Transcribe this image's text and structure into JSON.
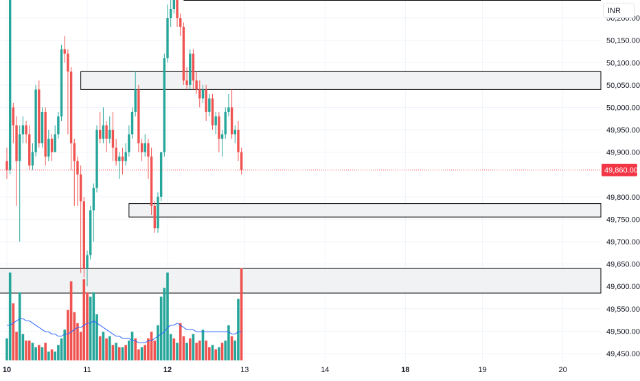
{
  "currency": "INR",
  "colors": {
    "up": "#26a69a",
    "down": "#ef5350",
    "ma_line": "#2962ff",
    "zone_fill": "#f0f2f4",
    "zone_border": "#000000",
    "grid": "#f0f3fa",
    "last_price": "#f23645"
  },
  "chart_data": {
    "type": "candlestick",
    "y_axis": {
      "range": [
        49430,
        50240
      ],
      "ticks": [
        50200,
        50150,
        50100,
        50050,
        50000,
        49950,
        49900,
        49800,
        49750,
        49700,
        49650,
        49600,
        49550,
        49500,
        49450
      ],
      "tick_labels": [
        "50,200.00",
        "50,150.00",
        "50,100.00",
        "50,050.00",
        "50,000.00",
        "49,950.00",
        "49,900.00",
        "49,800.00",
        "49,750.00",
        "49,700.00",
        "49,650.00",
        "49,600.00",
        "49,550.00",
        "49,500.00",
        "49,450.00"
      ]
    },
    "x_axis": {
      "ticks": [
        {
          "label": "10",
          "bold": true,
          "bar": 0
        },
        {
          "label": "11",
          "bold": false,
          "bar": 25
        },
        {
          "label": "12",
          "bold": true,
          "bar": 50
        },
        {
          "label": "13",
          "bold": false,
          "bar": 74
        },
        {
          "label": "14",
          "bold": false,
          "bar": 99
        },
        {
          "label": "18",
          "bold": true,
          "bar": 124
        },
        {
          "label": "19",
          "bold": false,
          "bar": 148
        },
        {
          "label": "20",
          "bold": false,
          "bar": 173
        }
      ]
    },
    "last_price": {
      "value": 49860,
      "label": "49,860.00"
    },
    "zones": [
      {
        "top": 50240,
        "bottom": 50240,
        "start_bar": 55,
        "type": "line"
      },
      {
        "top": 50080,
        "bottom": 50040,
        "start_bar": 23
      },
      {
        "top": 49785,
        "bottom": 49755,
        "start_bar": 38
      },
      {
        "top": 49640,
        "bottom": 49585,
        "start_bar": -3
      }
    ],
    "candles": [
      [
        49880,
        49860,
        49910,
        49840
      ],
      [
        49860,
        50240,
        50240,
        49850
      ],
      [
        50000,
        49960,
        50010,
        49920
      ],
      [
        49960,
        49880,
        49980,
        49780
      ],
      [
        49880,
        49940,
        49960,
        49700
      ],
      [
        49940,
        49960,
        49980,
        49920
      ],
      [
        49960,
        49940,
        49970,
        49920
      ],
      [
        49940,
        49870,
        49960,
        49860
      ],
      [
        49870,
        49900,
        49920,
        49860
      ],
      [
        49900,
        50040,
        50050,
        49890
      ],
      [
        50040,
        49920,
        50060,
        49910
      ],
      [
        49920,
        49990,
        50000,
        49910
      ],
      [
        49990,
        49890,
        50000,
        49870
      ],
      [
        49890,
        49930,
        49950,
        49880
      ],
      [
        49930,
        49900,
        49940,
        49880
      ],
      [
        49900,
        49940,
        49960,
        49900
      ],
      [
        49940,
        49980,
        49990,
        49930
      ],
      [
        49980,
        50130,
        50140,
        49970
      ],
      [
        50130,
        50120,
        50160,
        50100
      ],
      [
        50120,
        50080,
        50130,
        49940
      ],
      [
        50080,
        49920,
        50090,
        49860
      ],
      [
        49920,
        49880,
        49930,
        49780
      ],
      [
        49880,
        49850,
        49890,
        49780
      ],
      [
        49850,
        49790,
        49870,
        49630
      ],
      [
        49790,
        49640,
        49800,
        49620
      ],
      [
        49640,
        49670,
        49680,
        49600
      ],
      [
        49670,
        49770,
        49780,
        49660
      ],
      [
        49770,
        49820,
        49830,
        49700
      ],
      [
        49820,
        49950,
        49960,
        49810
      ],
      [
        49950,
        49930,
        49990,
        49920
      ],
      [
        49930,
        49960,
        50000,
        49920
      ],
      [
        49960,
        49930,
        49970,
        49900
      ],
      [
        49930,
        49950,
        49980,
        49920
      ],
      [
        49950,
        49910,
        49990,
        49880
      ],
      [
        49910,
        49880,
        49930,
        49870
      ],
      [
        49880,
        49890,
        49900,
        49840
      ],
      [
        49890,
        49880,
        49910,
        49850
      ],
      [
        49880,
        49900,
        49920,
        49870
      ],
      [
        49900,
        49940,
        49960,
        49890
      ],
      [
        49940,
        49990,
        50000,
        49930
      ],
      [
        49990,
        50040,
        50080,
        49980
      ],
      [
        50040,
        49920,
        50050,
        49900
      ],
      [
        49920,
        49900,
        49930,
        49880
      ],
      [
        49900,
        49920,
        49940,
        49890
      ],
      [
        49920,
        49890,
        49930,
        49840
      ],
      [
        49890,
        49780,
        49910,
        49760
      ],
      [
        49780,
        49730,
        49790,
        49720
      ],
      [
        49730,
        49800,
        49810,
        49720
      ],
      [
        49800,
        49900,
        49900,
        49790
      ],
      [
        49900,
        50110,
        50120,
        49890
      ],
      [
        50110,
        50200,
        50230,
        50100
      ],
      [
        50200,
        50220,
        50240,
        50180
      ],
      [
        50220,
        50240,
        50240,
        50210
      ],
      [
        50240,
        50200,
        50240,
        50180
      ],
      [
        50200,
        50180,
        50210,
        50160
      ],
      [
        50180,
        50060,
        50190,
        50050
      ],
      [
        50060,
        50050,
        50090,
        50040
      ],
      [
        50050,
        50120,
        50130,
        50040
      ],
      [
        50120,
        50060,
        50130,
        50040
      ],
      [
        50060,
        50040,
        50080,
        50030
      ],
      [
        50040,
        50020,
        50060,
        50000
      ],
      [
        50020,
        50040,
        50050,
        50010
      ],
      [
        50040,
        49990,
        50050,
        49970
      ],
      [
        49990,
        50020,
        50030,
        49980
      ],
      [
        50020,
        49960,
        50030,
        49950
      ],
      [
        49960,
        49980,
        49990,
        49940
      ],
      [
        49980,
        49930,
        49990,
        49900
      ],
      [
        49930,
        49940,
        49950,
        49890
      ],
      [
        49940,
        49990,
        50000,
        49930
      ],
      [
        49990,
        50000,
        50030,
        49980
      ],
      [
        50000,
        49940,
        50040,
        49930
      ],
      [
        49940,
        49950,
        49960,
        49920
      ],
      [
        49950,
        49900,
        49970,
        49880
      ],
      [
        49900,
        49860,
        49910,
        49850
      ]
    ],
    "volumes": [
      {
        "v": 1.0,
        "up": true
      },
      {
        "v": 4.0,
        "up": true
      },
      {
        "v": 2.6,
        "up": false
      },
      {
        "v": 1.3,
        "up": false
      },
      {
        "v": 3.1,
        "up": true
      },
      {
        "v": 1.2,
        "up": true
      },
      {
        "v": 0.9,
        "up": false
      },
      {
        "v": 0.9,
        "up": false
      },
      {
        "v": 0.8,
        "up": true
      },
      {
        "v": 0.6,
        "up": true
      },
      {
        "v": 0.7,
        "up": false
      },
      {
        "v": 0.6,
        "up": true
      },
      {
        "v": 0.8,
        "up": false
      },
      {
        "v": 0.4,
        "up": true
      },
      {
        "v": 0.5,
        "up": false
      },
      {
        "v": 0.4,
        "up": true
      },
      {
        "v": 0.7,
        "up": true
      },
      {
        "v": 1.0,
        "up": true
      },
      {
        "v": 1.4,
        "up": true
      },
      {
        "v": 2.3,
        "up": false
      },
      {
        "v": 3.6,
        "up": false
      },
      {
        "v": 2.2,
        "up": false
      },
      {
        "v": 1.7,
        "up": false
      },
      {
        "v": 1.3,
        "up": false
      },
      {
        "v": 3.7,
        "up": false
      },
      {
        "v": 3.1,
        "up": false
      },
      {
        "v": 2.9,
        "up": true
      },
      {
        "v": 3.1,
        "up": true
      },
      {
        "v": 2.1,
        "up": true
      },
      {
        "v": 1.1,
        "up": false
      },
      {
        "v": 1.3,
        "up": true
      },
      {
        "v": 1.0,
        "up": false
      },
      {
        "v": 1.1,
        "up": true
      },
      {
        "v": 0.7,
        "up": false
      },
      {
        "v": 0.8,
        "up": true
      },
      {
        "v": 0.6,
        "up": false
      },
      {
        "v": 0.6,
        "up": true
      },
      {
        "v": 0.7,
        "up": false
      },
      {
        "v": 0.9,
        "up": true
      },
      {
        "v": 1.3,
        "up": true
      },
      {
        "v": 1.0,
        "up": false
      },
      {
        "v": 0.5,
        "up": false
      },
      {
        "v": 0.6,
        "up": true
      },
      {
        "v": 0.7,
        "up": false
      },
      {
        "v": 1.0,
        "up": false
      },
      {
        "v": 1.3,
        "up": false
      },
      {
        "v": 0.9,
        "up": false
      },
      {
        "v": 1.6,
        "up": true
      },
      {
        "v": 2.9,
        "up": true
      },
      {
        "v": 3.3,
        "up": true
      },
      {
        "v": 4.0,
        "up": true
      },
      {
        "v": 1.2,
        "up": true
      },
      {
        "v": 1.0,
        "up": false
      },
      {
        "v": 0.8,
        "up": true
      },
      {
        "v": 1.7,
        "up": false
      },
      {
        "v": 1.1,
        "up": false
      },
      {
        "v": 0.8,
        "up": true
      },
      {
        "v": 1.0,
        "up": false
      },
      {
        "v": 1.2,
        "up": true
      },
      {
        "v": 0.8,
        "up": false
      },
      {
        "v": 0.9,
        "up": false
      },
      {
        "v": 1.4,
        "up": true
      },
      {
        "v": 0.9,
        "up": false
      },
      {
        "v": 0.6,
        "up": false
      },
      {
        "v": 0.7,
        "up": true
      },
      {
        "v": 0.5,
        "up": false
      },
      {
        "v": 0.6,
        "up": true
      },
      {
        "v": 0.8,
        "up": false
      },
      {
        "v": 0.9,
        "up": true
      },
      {
        "v": 1.6,
        "up": true
      },
      {
        "v": 1.1,
        "up": false
      },
      {
        "v": 0.9,
        "up": true
      },
      {
        "v": 2.8,
        "up": true
      },
      {
        "v": 4.2,
        "up": false
      }
    ],
    "volume_ma": [
      1.6,
      1.6,
      1.7,
      1.8,
      1.9,
      1.9,
      1.8,
      1.8,
      1.7,
      1.6,
      1.5,
      1.4,
      1.3,
      1.3,
      1.2,
      1.2,
      1.1,
      1.1,
      1.2,
      1.2,
      1.3,
      1.4,
      1.5,
      1.5,
      1.6,
      1.7,
      1.7,
      1.8,
      1.7,
      1.6,
      1.5,
      1.4,
      1.3,
      1.2,
      1.1,
      1.1,
      1.0,
      1.0,
      1.0,
      0.9,
      0.9,
      0.8,
      0.8,
      0.8,
      0.9,
      0.9,
      1.0,
      1.1,
      1.2,
      1.3,
      1.5,
      1.6,
      1.6,
      1.7,
      1.6,
      1.5,
      1.4,
      1.4,
      1.4,
      1.3,
      1.3,
      1.3,
      1.3,
      1.3,
      1.3,
      1.3,
      1.3,
      1.3,
      1.3,
      1.3,
      1.2,
      1.2,
      1.3,
      1.3
    ]
  }
}
